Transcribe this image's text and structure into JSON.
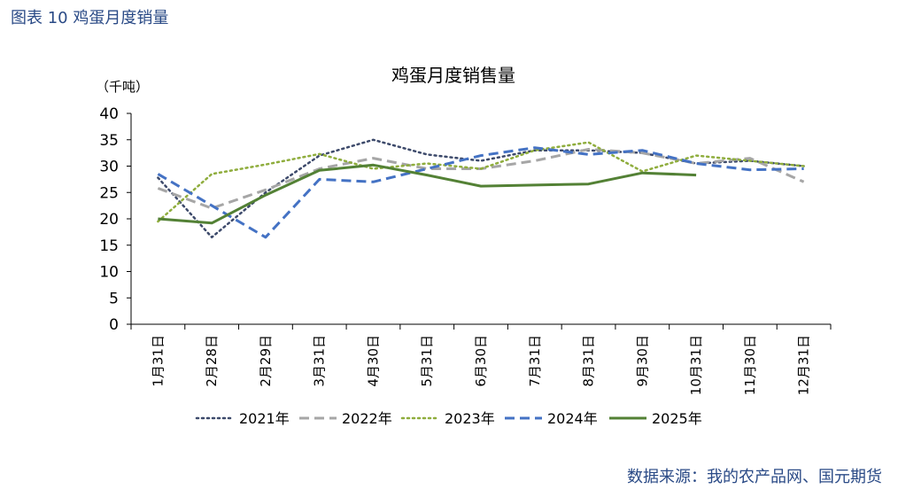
{
  "figure_label": "图表 10  鸡蛋月度销量",
  "source": "数据来源：我的农产品网、国元期货",
  "chart_data": {
    "type": "line",
    "title": "鸡蛋月度销售量",
    "ylabel": "（千吨）",
    "xlabel": "",
    "ylim": [
      0,
      40
    ],
    "yticks": [
      0,
      5,
      10,
      15,
      20,
      25,
      30,
      35,
      40
    ],
    "categories": [
      "1月31日",
      "2月28日",
      "2月29日",
      "3月31日",
      "4月30日",
      "5月31日",
      "6月30日",
      "7月31日",
      "8月31日",
      "9月30日",
      "10月31日",
      "11月30日",
      "12月31日"
    ],
    "series": [
      {
        "name": "2021年",
        "color": "#3d4a6b",
        "dash": "dotted",
        "values": [
          27.8,
          16.5,
          25.0,
          32.0,
          35.0,
          32.2,
          31.0,
          33.0,
          33.0,
          32.5,
          30.5,
          31.0,
          30.0
        ]
      },
      {
        "name": "2022年",
        "color": "#a6a6a6",
        "dash": "dashed",
        "values": [
          25.8,
          22.0,
          25.5,
          29.5,
          31.5,
          29.5,
          29.5,
          31.0,
          33.2,
          32.5,
          30.5,
          31.5,
          27.0
        ]
      },
      {
        "name": "2023年",
        "color": "#8fad3d",
        "dash": "dotted",
        "values": [
          19.5,
          28.5,
          30.3,
          32.3,
          29.5,
          30.5,
          29.5,
          33.0,
          34.5,
          29.0,
          32.0,
          31.0,
          30.0
        ]
      },
      {
        "name": "2024年",
        "color": "#4472c4",
        "dash": "dashed",
        "values": [
          28.5,
          22.5,
          16.5,
          27.5,
          27.0,
          29.5,
          32.0,
          33.5,
          32.2,
          33.0,
          30.5,
          29.3,
          29.5
        ]
      },
      {
        "name": "2025年",
        "color": "#538135",
        "dash": "solid",
        "values": [
          20.0,
          19.2,
          24.5,
          29.2,
          30.2,
          28.3,
          26.2,
          26.4,
          26.6,
          28.7,
          28.3,
          null,
          null
        ]
      }
    ],
    "legend_position": "bottom",
    "grid": false
  }
}
